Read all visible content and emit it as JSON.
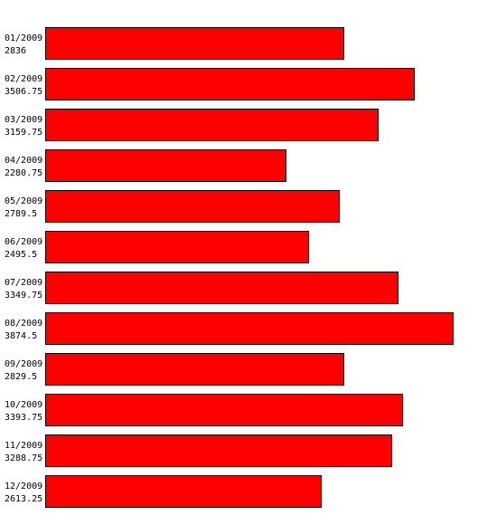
{
  "chart_data": {
    "type": "bar",
    "orientation": "horizontal",
    "categories": [
      "01/2009",
      "02/2009",
      "03/2009",
      "04/2009",
      "05/2009",
      "06/2009",
      "07/2009",
      "08/2009",
      "09/2009",
      "10/2009",
      "11/2009",
      "12/2009"
    ],
    "values": [
      2836,
      3506.75,
      3159.75,
      2280.75,
      2789.5,
      2495.5,
      3349.75,
      3874.5,
      2829.5,
      3393.75,
      3288.75,
      2613.25
    ],
    "value_labels": [
      "2836",
      "3506.75",
      "3159.75",
      "2280.75",
      "2789.5",
      "2495.5",
      "3349.75",
      "3874.5",
      "2829.5",
      "3393.75",
      "3288.75",
      "2613.25"
    ],
    "title": "",
    "xlabel": "",
    "ylabel": "",
    "xlim": [
      0,
      3874.5
    ],
    "grid": false,
    "legend": "none",
    "bar_color": "#ff0000",
    "border_color": "#000000"
  }
}
